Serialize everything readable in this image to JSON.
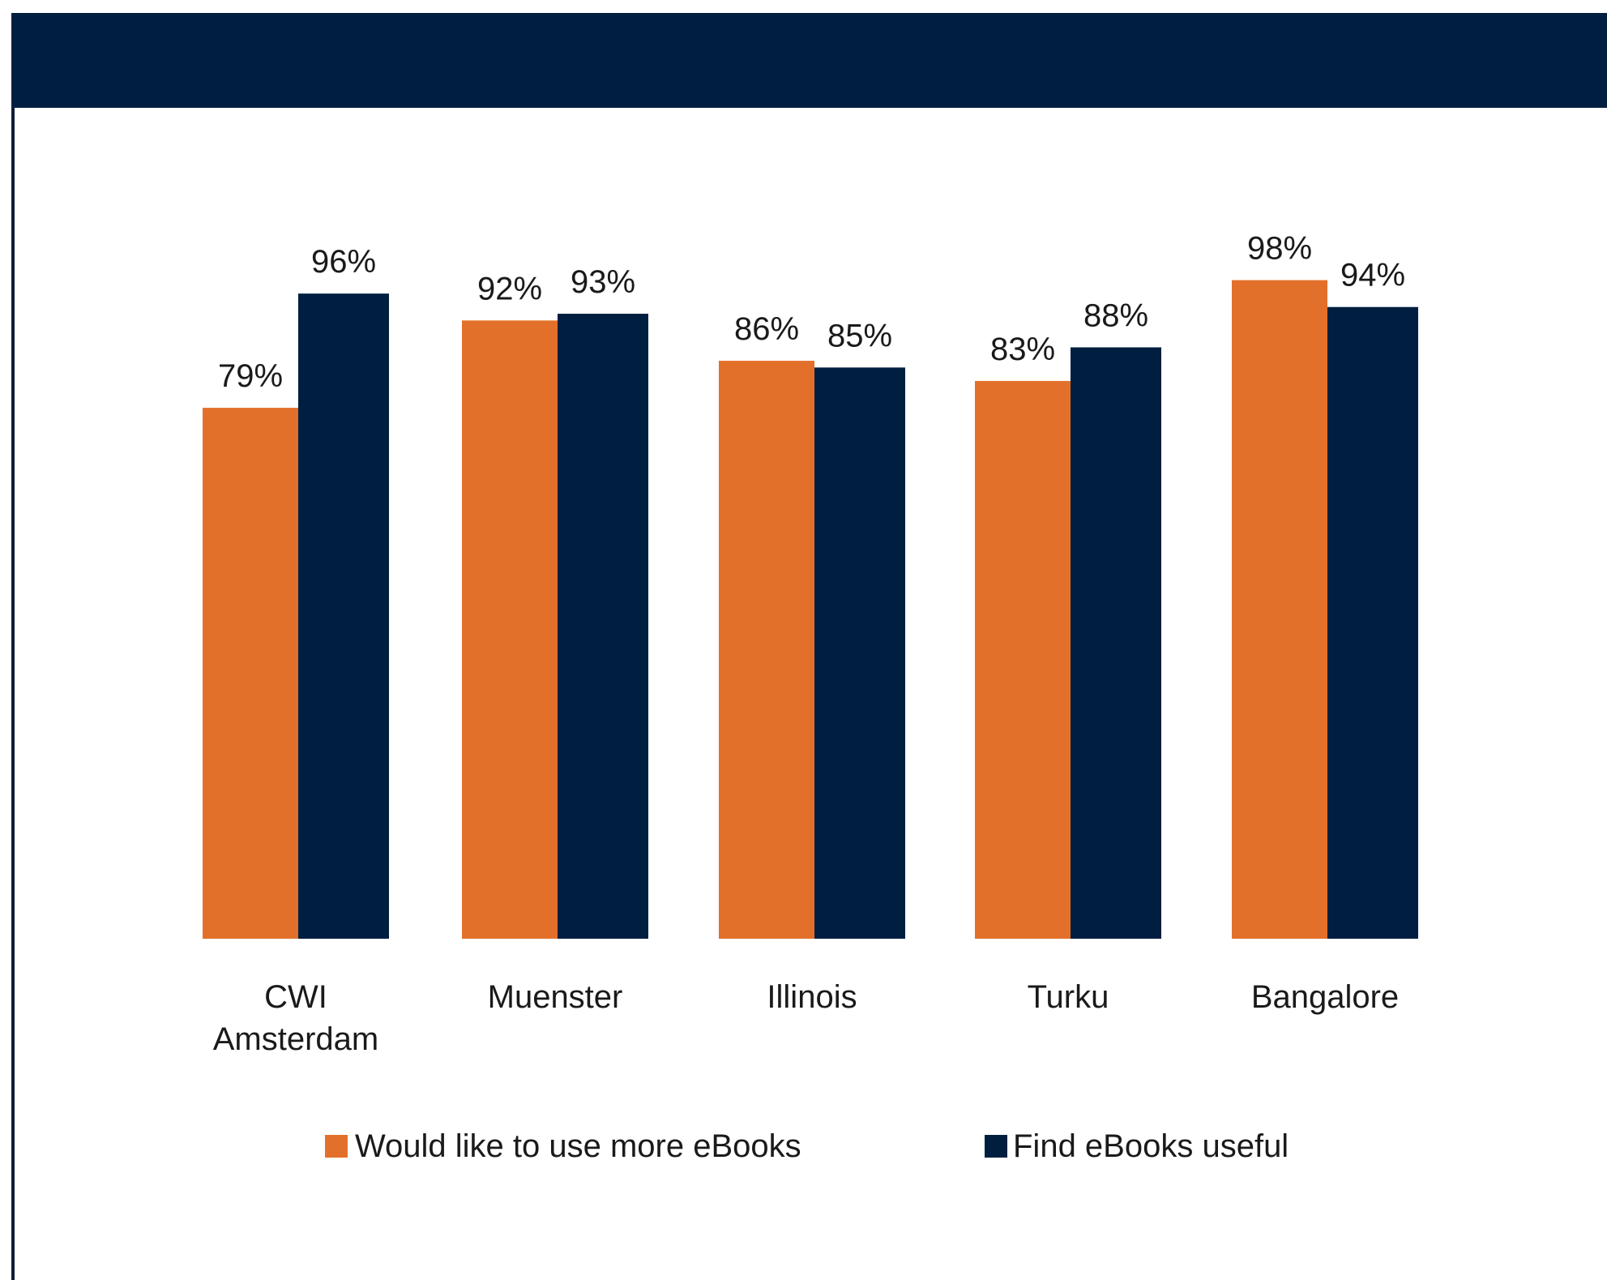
{
  "chart_data": {
    "type": "bar",
    "categories": [
      [
        "CWI",
        "Amsterdam"
      ],
      [
        "Muenster"
      ],
      [
        "Illinois"
      ],
      [
        "Turku"
      ],
      [
        "Bangalore"
      ]
    ],
    "series": [
      {
        "name": "Would like to use more eBooks",
        "color": "#e3702a",
        "values": [
          79,
          92,
          86,
          83,
          98
        ],
        "labels": [
          "79%",
          "92%",
          "86%",
          "83%",
          "98%"
        ]
      },
      {
        "name": "Find eBooks useful",
        "color": "#001f40",
        "values": [
          96,
          93,
          85,
          88,
          94
        ],
        "labels": [
          "96%",
          "93%",
          "85%",
          "88%",
          "94%"
        ]
      }
    ],
    "ylim": [
      0,
      100
    ],
    "grid": false,
    "legend_position": "bottom"
  },
  "header": {
    "band_color": "#001f40"
  }
}
